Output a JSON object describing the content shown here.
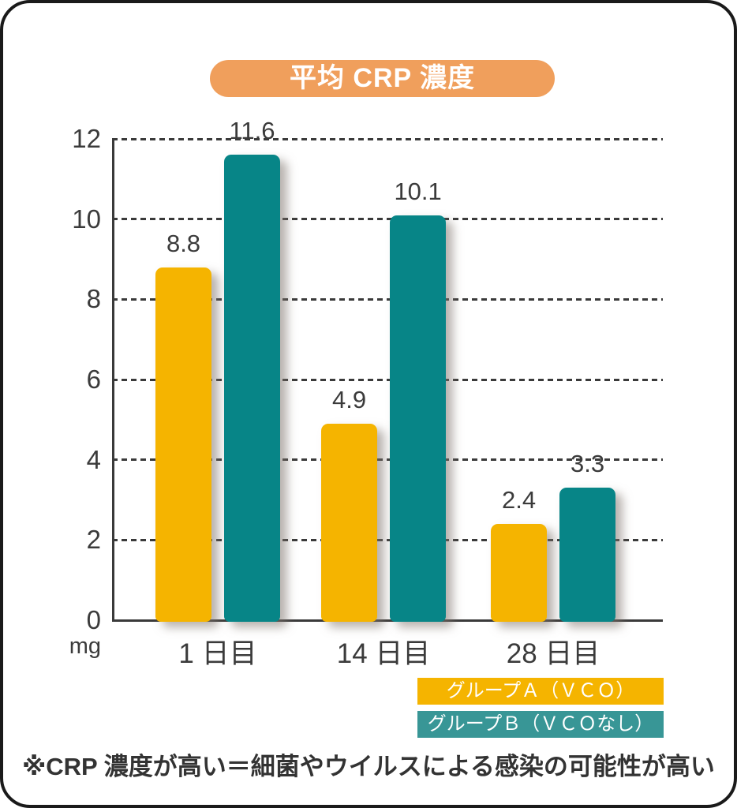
{
  "title": "平均 CRP 濃度",
  "chart_data": {
    "type": "bar",
    "categories": [
      "1 日目",
      "14 日目",
      "28 日目"
    ],
    "series": [
      {
        "name": "グループＡ（ＶＣＯ）",
        "color": "#F5B400",
        "legend_color": "#F5B400",
        "values": [
          8.8,
          4.9,
          2.4
        ]
      },
      {
        "name": "グループＢ（ＶＣＯなし）",
        "color": "#078587",
        "legend_color": "#389696",
        "values": [
          11.6,
          10.1,
          3.3
        ]
      }
    ],
    "unit_label": "mg",
    "yticks": [
      0,
      2,
      4,
      6,
      8,
      10,
      12
    ],
    "ylim": [
      0,
      12
    ],
    "grid": "dashed-horizontal",
    "legend_position": "bottom-right",
    "value_labels": [
      "8.8",
      "11.6",
      "4.9",
      "10.1",
      "2.4",
      "3.3"
    ]
  },
  "footnote": "※CRP 濃度が高い＝細菌やウイルスによる感染の可能性が高い",
  "colors": {
    "title_bg": "#F09F5C",
    "border": "#1A1A1A",
    "axis": "#3A3A3A",
    "text": "#3B3B3B",
    "background": "#FFFFFF"
  }
}
